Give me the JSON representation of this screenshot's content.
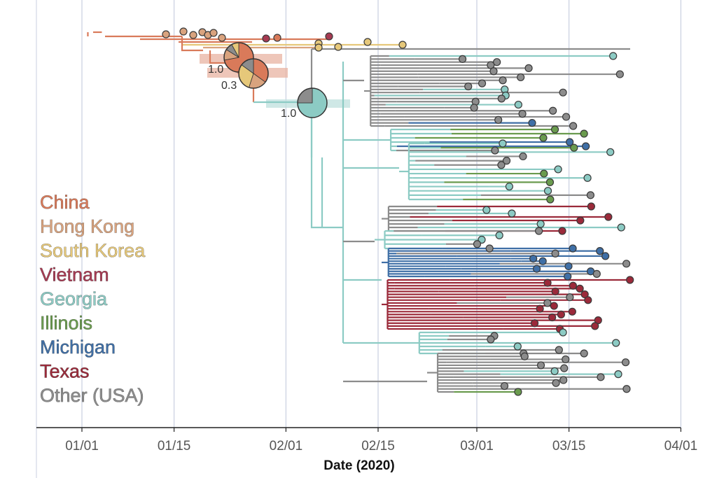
{
  "chart_data": {
    "type": "time-scaled phylogenetic tree",
    "xlabel": "Date (2020)",
    "ylabel": "",
    "x_ticks": [
      "01/01",
      "01/15",
      "02/01",
      "02/15",
      "03/01",
      "03/15",
      "04/01"
    ],
    "x_tick_days": [
      0,
      14,
      31,
      45,
      60,
      74,
      91
    ],
    "x_range_days": [
      -3,
      96
    ],
    "grid": "vertical",
    "legend": {
      "placement": "left",
      "entries": [
        {
          "name": "China",
          "color": "#d97a5a"
        },
        {
          "name": "Hong Kong",
          "color": "#d9a37e"
        },
        {
          "name": "South Korea",
          "color": "#e6c87a"
        },
        {
          "name": "Vietnam",
          "color": "#a63a52"
        },
        {
          "name": "Georgia",
          "color": "#8ccbc4"
        },
        {
          "name": "Illinois",
          "color": "#6a9b4e"
        },
        {
          "name": "Michigan",
          "color": "#3f6fa6"
        },
        {
          "name": "Texas",
          "color": "#9b2a3a"
        },
        {
          "name": "Other (USA)",
          "color": "#8c8c8c"
        }
      ]
    },
    "annotations": [
      {
        "label": "1.0",
        "day": 25.3,
        "kind": "ancestral-state pie"
      },
      {
        "label": "0.3",
        "day": 27.8,
        "kind": "ancestral-state pie"
      },
      {
        "label": "1.0",
        "day": 36.0,
        "kind": "ancestral-state pie"
      }
    ],
    "root_day": 0.9,
    "us_introduction_day": 36.0
  },
  "colors": {
    "grid": "#c9cfe0",
    "axis": "#222222",
    "uncertainty_china": "#e8b3a2",
    "uncertainty_georgia": "#bfe0dd",
    "tip_outline": "#3a3a3a"
  }
}
